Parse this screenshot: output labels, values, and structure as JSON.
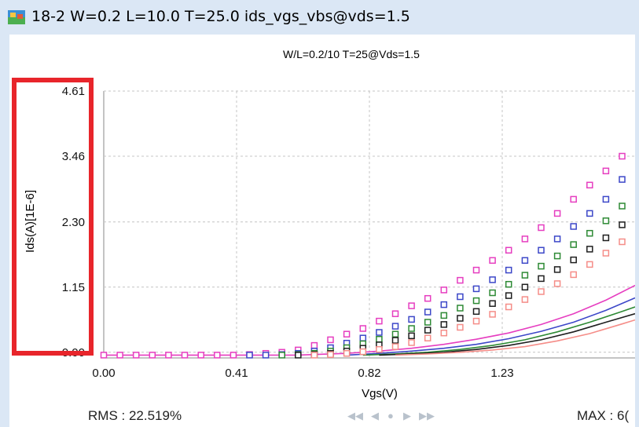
{
  "window": {
    "title": "18-2  W=0.2  L=10.0  T=25.0  ids_vgs_vbs@vds=1.5",
    "icon": "app-chart-icon"
  },
  "chart_data": {
    "type": "scatter",
    "title": "W/L=0.2/10   T=25@Vds=1.5",
    "xlabel": "Vgs(V)",
    "ylabel": "Ids(A)[1E-6]",
    "xlim": [
      0.0,
      1.64
    ],
    "ylim": [
      -0.1,
      4.61
    ],
    "x_ticks": [
      "0.00",
      "0.41",
      "0.82",
      "1.23"
    ],
    "y_ticks": [
      "0.00",
      "1.15",
      "2.30",
      "3.46",
      "4.61"
    ],
    "grid": true,
    "highlight": {
      "target": "y-axis-tick-labels",
      "color": "#e8252b"
    },
    "series": [
      {
        "kind": "measured",
        "color": "#e63ec0",
        "x": [
          0.0,
          0.05,
          0.1,
          0.15,
          0.2,
          0.25,
          0.3,
          0.35,
          0.4,
          0.45,
          0.5,
          0.55,
          0.6,
          0.65,
          0.7,
          0.75,
          0.8,
          0.85,
          0.9,
          0.95,
          1.0,
          1.05,
          1.1,
          1.15,
          1.2,
          1.25,
          1.3,
          1.35,
          1.4,
          1.45,
          1.5,
          1.55,
          1.6
        ],
        "y": [
          -0.05,
          -0.05,
          -0.05,
          -0.05,
          -0.05,
          -0.05,
          -0.05,
          -0.05,
          -0.05,
          -0.04,
          -0.02,
          0.0,
          0.04,
          0.12,
          0.22,
          0.32,
          0.42,
          0.55,
          0.68,
          0.82,
          0.95,
          1.1,
          1.27,
          1.45,
          1.62,
          1.8,
          2.0,
          2.2,
          2.45,
          2.7,
          2.95,
          3.2,
          3.46
        ]
      },
      {
        "kind": "measured",
        "color": "#3c47c8",
        "x": [
          0.45,
          0.5,
          0.55,
          0.6,
          0.65,
          0.7,
          0.75,
          0.8,
          0.85,
          0.9,
          0.95,
          1.0,
          1.05,
          1.1,
          1.15,
          1.2,
          1.25,
          1.3,
          1.35,
          1.4,
          1.45,
          1.5,
          1.55,
          1.6
        ],
        "y": [
          -0.05,
          -0.05,
          -0.04,
          -0.02,
          0.02,
          0.08,
          0.16,
          0.25,
          0.35,
          0.46,
          0.58,
          0.71,
          0.84,
          0.98,
          1.12,
          1.28,
          1.45,
          1.62,
          1.8,
          2.0,
          2.22,
          2.45,
          2.7,
          3.05
        ]
      },
      {
        "kind": "measured",
        "color": "#2e8a35",
        "x": [
          0.55,
          0.6,
          0.65,
          0.7,
          0.75,
          0.8,
          0.85,
          0.9,
          0.95,
          1.0,
          1.05,
          1.1,
          1.15,
          1.2,
          1.25,
          1.3,
          1.35,
          1.4,
          1.45,
          1.5,
          1.55,
          1.6
        ],
        "y": [
          -0.05,
          -0.04,
          -0.02,
          0.02,
          0.08,
          0.15,
          0.23,
          0.32,
          0.42,
          0.53,
          0.65,
          0.78,
          0.91,
          1.05,
          1.2,
          1.36,
          1.52,
          1.7,
          1.9,
          2.1,
          2.32,
          2.58
        ]
      },
      {
        "kind": "measured",
        "color": "#1e1e1e",
        "x": [
          0.6,
          0.65,
          0.7,
          0.75,
          0.8,
          0.85,
          0.9,
          0.95,
          1.0,
          1.05,
          1.1,
          1.15,
          1.2,
          1.25,
          1.3,
          1.35,
          1.4,
          1.45,
          1.5,
          1.55,
          1.6
        ],
        "y": [
          -0.05,
          -0.04,
          -0.02,
          0.02,
          0.07,
          0.13,
          0.21,
          0.29,
          0.39,
          0.49,
          0.6,
          0.72,
          0.86,
          1.0,
          1.15,
          1.3,
          1.46,
          1.63,
          1.82,
          2.02,
          2.25
        ]
      },
      {
        "kind": "measured",
        "color": "#f58d88",
        "x": [
          0.65,
          0.7,
          0.75,
          0.8,
          0.85,
          0.9,
          0.95,
          1.0,
          1.05,
          1.1,
          1.15,
          1.2,
          1.25,
          1.3,
          1.35,
          1.4,
          1.45,
          1.5,
          1.55,
          1.6
        ],
        "y": [
          -0.05,
          -0.04,
          -0.02,
          0.01,
          0.05,
          0.1,
          0.17,
          0.25,
          0.34,
          0.44,
          0.55,
          0.67,
          0.8,
          0.93,
          1.07,
          1.21,
          1.37,
          1.55,
          1.75,
          1.95
        ]
      },
      {
        "kind": "model",
        "color": "#e63ec0",
        "x": [
          0.0,
          0.6,
          0.75,
          0.85,
          0.95,
          1.05,
          1.15,
          1.25,
          1.35,
          1.45,
          1.55,
          1.64
        ],
        "y": [
          -0.05,
          -0.05,
          -0.02,
          0.02,
          0.07,
          0.14,
          0.23,
          0.34,
          0.49,
          0.68,
          0.92,
          1.18
        ]
      },
      {
        "kind": "model",
        "color": "#3c47c8",
        "x": [
          0.75,
          0.85,
          0.95,
          1.05,
          1.15,
          1.25,
          1.35,
          1.45,
          1.55,
          1.64
        ],
        "y": [
          -0.05,
          -0.02,
          0.02,
          0.07,
          0.14,
          0.24,
          0.37,
          0.53,
          0.74,
          0.96
        ]
      },
      {
        "kind": "model",
        "color": "#2e8a35",
        "x": [
          0.8,
          0.9,
          1.0,
          1.1,
          1.2,
          1.3,
          1.4,
          1.5,
          1.6,
          1.64
        ],
        "y": [
          -0.05,
          -0.03,
          0.0,
          0.05,
          0.12,
          0.22,
          0.36,
          0.53,
          0.72,
          0.8
        ]
      },
      {
        "kind": "model",
        "color": "#1e1e1e",
        "x": [
          0.85,
          0.95,
          1.05,
          1.15,
          1.25,
          1.35,
          1.45,
          1.55,
          1.64
        ],
        "y": [
          -0.05,
          -0.03,
          0.0,
          0.05,
          0.12,
          0.22,
          0.36,
          0.53,
          0.68
        ]
      },
      {
        "kind": "model",
        "color": "#f58d88",
        "x": [
          0.9,
          1.0,
          1.1,
          1.2,
          1.3,
          1.4,
          1.5,
          1.6,
          1.64
        ],
        "y": [
          -0.05,
          -0.03,
          0.0,
          0.04,
          0.1,
          0.2,
          0.33,
          0.5,
          0.57
        ]
      }
    ]
  },
  "status": {
    "rms": "RMS : 22.519%",
    "max": "MAX : 6("
  },
  "nav": {
    "first": "◀◀",
    "prev": "◀",
    "play": "●",
    "next": "▶",
    "last": "▶▶"
  }
}
